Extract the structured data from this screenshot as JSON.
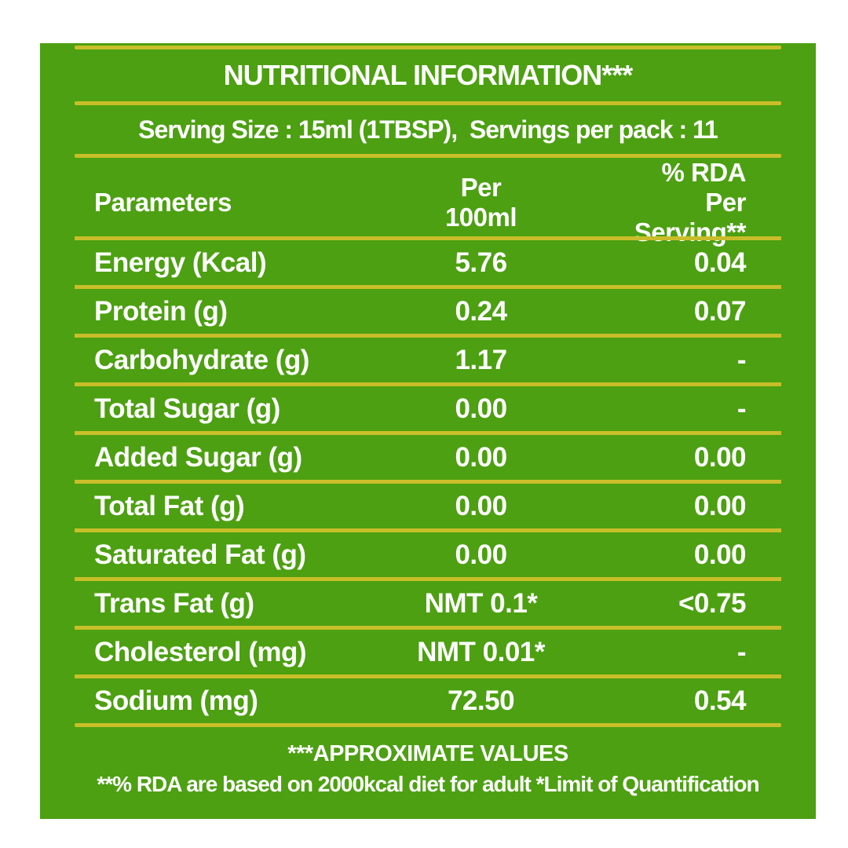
{
  "panel": {
    "title": "NUTRITIONAL INFORMATION***",
    "serving_line": "Serving Size : 15ml (1TBSP),  Servings per pack : 11",
    "columns": {
      "parameter": "Parameters",
      "per100_line1": "Per",
      "per100_line2": "100ml",
      "rda_line1": "% RDA",
      "rda_line2": "Per Serving**"
    },
    "rows": [
      {
        "parameter": "Energy (Kcal)",
        "per_100ml": "5.76",
        "rda": "0.04"
      },
      {
        "parameter": "Protein (g)",
        "per_100ml": "0.24",
        "rda": "0.07"
      },
      {
        "parameter": "Carbohydrate (g)",
        "per_100ml": "1.17",
        "rda": "-"
      },
      {
        "parameter": "Total Sugar (g)",
        "per_100ml": "0.00",
        "rda": "-"
      },
      {
        "parameter": "Added Sugar (g)",
        "per_100ml": "0.00",
        "rda": "0.00"
      },
      {
        "parameter": "Total Fat (g)",
        "per_100ml": "0.00",
        "rda": "0.00"
      },
      {
        "parameter": "Saturated Fat (g)",
        "per_100ml": "0.00",
        "rda": "0.00"
      },
      {
        "parameter": "Trans Fat (g)",
        "per_100ml": "NMT 0.1*",
        "rda": "<0.75"
      },
      {
        "parameter": "Cholesterol (mg)",
        "per_100ml": "NMT 0.01*",
        "rda": "-"
      },
      {
        "parameter": "Sodium (mg)",
        "per_100ml": "72.50",
        "rda": "0.54"
      }
    ],
    "footnote1": "***APPROXIMATE VALUES",
    "footnote2": "**% RDA are based on 2000kcal diet for adult *Limit of Quantification",
    "colors": {
      "background": "#4CA011",
      "rule": "#C9BE2A",
      "text": "#FFFFFF",
      "page": "#FFFFFF"
    }
  }
}
